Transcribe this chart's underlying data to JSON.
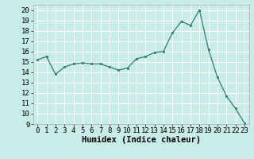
{
  "x": [
    0,
    1,
    2,
    3,
    4,
    5,
    6,
    7,
    8,
    9,
    10,
    11,
    12,
    13,
    14,
    15,
    16,
    17,
    18,
    19,
    20,
    21,
    22,
    23
  ],
  "y": [
    15.2,
    15.5,
    13.8,
    14.5,
    14.8,
    14.9,
    14.8,
    14.8,
    14.5,
    14.2,
    14.4,
    15.3,
    15.5,
    15.9,
    16.0,
    17.8,
    18.9,
    18.5,
    20.0,
    16.2,
    13.5,
    11.7,
    10.5,
    9.1
  ],
  "xlabel": "Humidex (Indice chaleur)",
  "ylim": [
    9,
    20.5
  ],
  "yticks": [
    9,
    10,
    11,
    12,
    13,
    14,
    15,
    16,
    17,
    18,
    19,
    20
  ],
  "xticks": [
    0,
    1,
    2,
    3,
    4,
    5,
    6,
    7,
    8,
    9,
    10,
    11,
    12,
    13,
    14,
    15,
    16,
    17,
    18,
    19,
    20,
    21,
    22,
    23
  ],
  "line_color": "#2e7d6e",
  "bg_color": "#c8ece8",
  "grid_color": "#ffffff",
  "label_fontsize": 7.5,
  "tick_fontsize": 6.5
}
